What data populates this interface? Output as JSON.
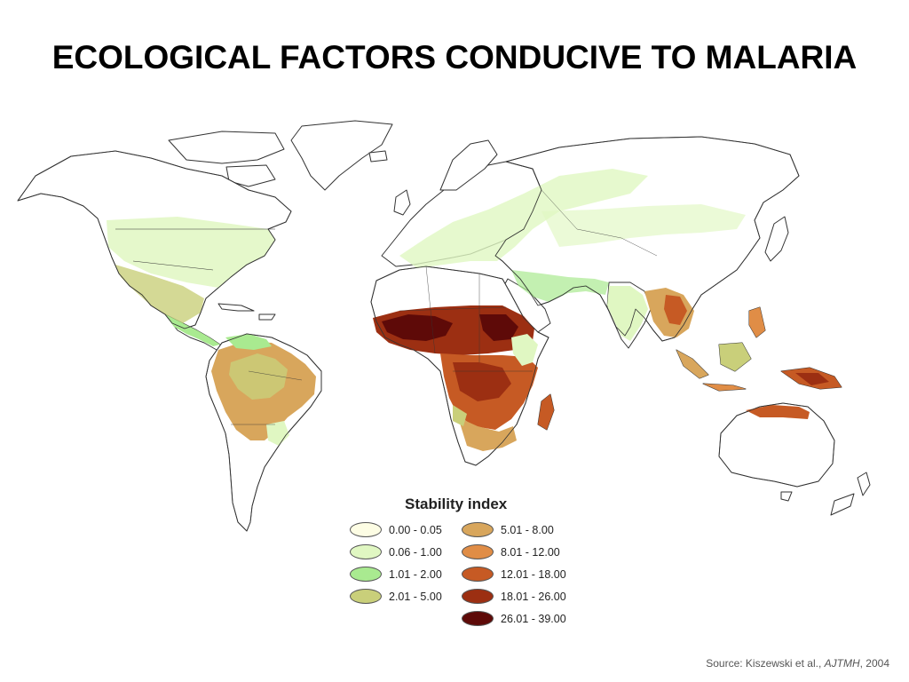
{
  "title": "ECOLOGICAL FACTORS CONDUCIVE TO MALARIA",
  "legend": {
    "title": "Stability index",
    "items": [
      {
        "label": "0.00 - 0.05",
        "color": "#fdfde4"
      },
      {
        "label": "0.06 - 1.00",
        "color": "#e0f7c2"
      },
      {
        "label": "1.01 - 2.00",
        "color": "#a9ea90"
      },
      {
        "label": "2.01 - 5.00",
        "color": "#c9cf7a"
      },
      {
        "label": "5.01 - 8.00",
        "color": "#d8a65c"
      },
      {
        "label": "8.01 - 12.00",
        "color": "#e08d46"
      },
      {
        "label": "12.01 - 18.00",
        "color": "#c65a24"
      },
      {
        "label": "18.01 - 26.00",
        "color": "#9c2f12"
      },
      {
        "label": "26.01 - 39.00",
        "color": "#5e0a08"
      }
    ]
  },
  "source": {
    "prefix": "Source: Kiszewski et al., ",
    "journal": "AJTMH",
    "suffix": ", 2004"
  },
  "colors": {
    "land_base": "#ffffff",
    "border": "#333333"
  }
}
